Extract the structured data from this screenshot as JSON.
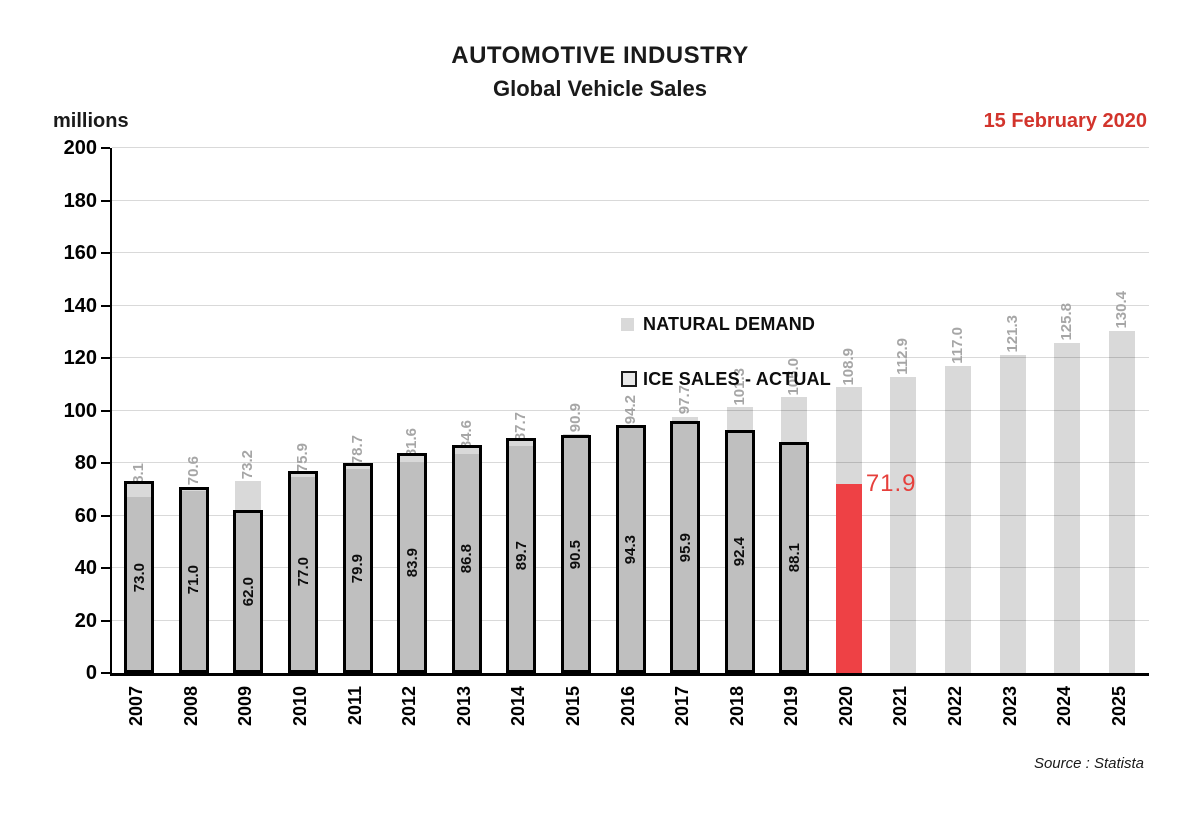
{
  "header": {
    "title_line1": "AUTOMOTIVE INDUSTRY",
    "title_line2": "Global Vehicle Sales",
    "axis_unit_label": "millions",
    "date_label": "15 February 2020"
  },
  "legend": [
    {
      "label": "NATURAL DEMAND",
      "swatch": "light-gray-square"
    },
    {
      "label": "ICE SALES - ACTUAL",
      "swatch": "outlined-square"
    }
  ],
  "footer": {
    "source": "Source : Statista"
  },
  "colors": {
    "natural_fill": "#d9d9d9",
    "ice_fill": "#bfbfbf",
    "ice_border": "#000000",
    "highlight_red": "#ee4145",
    "red_label": "#e6403c",
    "date_red": "#d2342c",
    "gray_label": "#a6a6a6",
    "gridline": "#d9d9d9"
  },
  "chart_data": {
    "type": "bar",
    "title": "AUTOMOTIVE INDUSTRY",
    "subtitle": "Global Vehicle Sales",
    "ylabel": "millions",
    "ylim": [
      0,
      200
    ],
    "ytick_step": 20,
    "grid": true,
    "legend_position": "top-center-inside",
    "categories": [
      2007,
      2008,
      2009,
      2010,
      2011,
      2012,
      2013,
      2014,
      2015,
      2016,
      2017,
      2018,
      2019,
      2020,
      2021,
      2022,
      2023,
      2024,
      2025
    ],
    "series": [
      {
        "name": "NATURAL DEMAND",
        "color": "#d9d9d9",
        "values": [
          68.1,
          70.6,
          73.2,
          75.9,
          78.7,
          81.6,
          84.6,
          87.7,
          90.9,
          94.2,
          97.7,
          101.3,
          105.0,
          108.9,
          112.9,
          117.0,
          121.3,
          125.8,
          130.4
        ]
      },
      {
        "name": "ICE SALES - ACTUAL",
        "color": "#bfbfbf",
        "border_color": "#000000",
        "values": [
          73.0,
          71.0,
          62.0,
          77.0,
          79.9,
          83.9,
          86.8,
          89.7,
          90.5,
          94.3,
          95.9,
          92.4,
          88.1,
          71.9,
          null,
          null,
          null,
          null,
          null
        ]
      }
    ],
    "highlight": {
      "year": 2020,
      "value": 71.9,
      "color": "#ee4145",
      "label": "71.9"
    },
    "annotations": [
      "15 February 2020",
      "Source : Statista"
    ]
  }
}
